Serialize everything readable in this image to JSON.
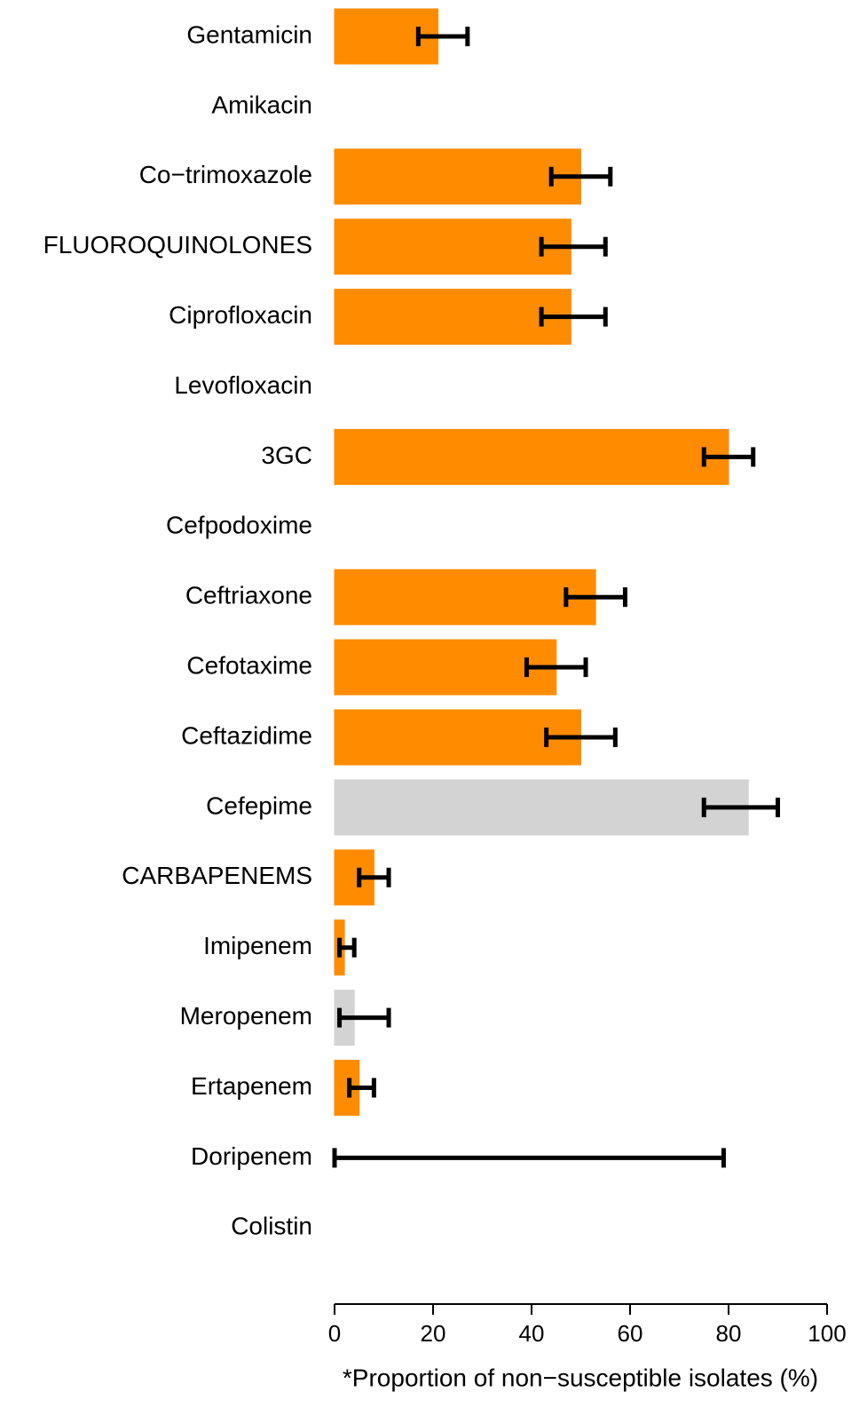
{
  "chart_data": {
    "type": "barh",
    "xlabel": "*Proportion of non−susceptible isolates (%)",
    "categories": [
      "Gentamicin",
      "Amikacin",
      "Co−trimoxazole",
      "FLUOROQUINOLONES",
      "Ciprofloxacin",
      "Levofloxacin",
      "3GC",
      "Cefpodoxime",
      "Ceftriaxone",
      "Cefotaxime",
      "Ceftazidime",
      "Cefepime",
      "CARBAPENEMS",
      "Imipenem",
      "Meropenem",
      "Ertapenem",
      "Doripenem",
      "Colistin"
    ],
    "series": [
      {
        "values": [
          21,
          null,
          50,
          48,
          48,
          null,
          80,
          null,
          53,
          45,
          50,
          84,
          8,
          2,
          4,
          5,
          0,
          null
        ],
        "ci_low": [
          17,
          null,
          44,
          42,
          42,
          null,
          75,
          null,
          47,
          39,
          43,
          75,
          5,
          1,
          1,
          3,
          0,
          null
        ],
        "ci_high": [
          27,
          null,
          56,
          55,
          55,
          null,
          85,
          null,
          59,
          51,
          57,
          90,
          11,
          4,
          11,
          8,
          79,
          null
        ],
        "colors": [
          "#ff8c00",
          null,
          "#ff8c00",
          "#ff8c00",
          "#ff8c00",
          null,
          "#ff8c00",
          null,
          "#ff8c00",
          "#ff8c00",
          "#ff8c00",
          "#d3d3d3",
          "#ff8c00",
          "#ff8c00",
          "#d3d3d3",
          "#ff8c00",
          "#d3d3d3",
          null
        ]
      }
    ],
    "xlim": [
      0,
      100
    ],
    "xticks": [
      0,
      20,
      40,
      60,
      80,
      100
    ],
    "grid": false
  }
}
